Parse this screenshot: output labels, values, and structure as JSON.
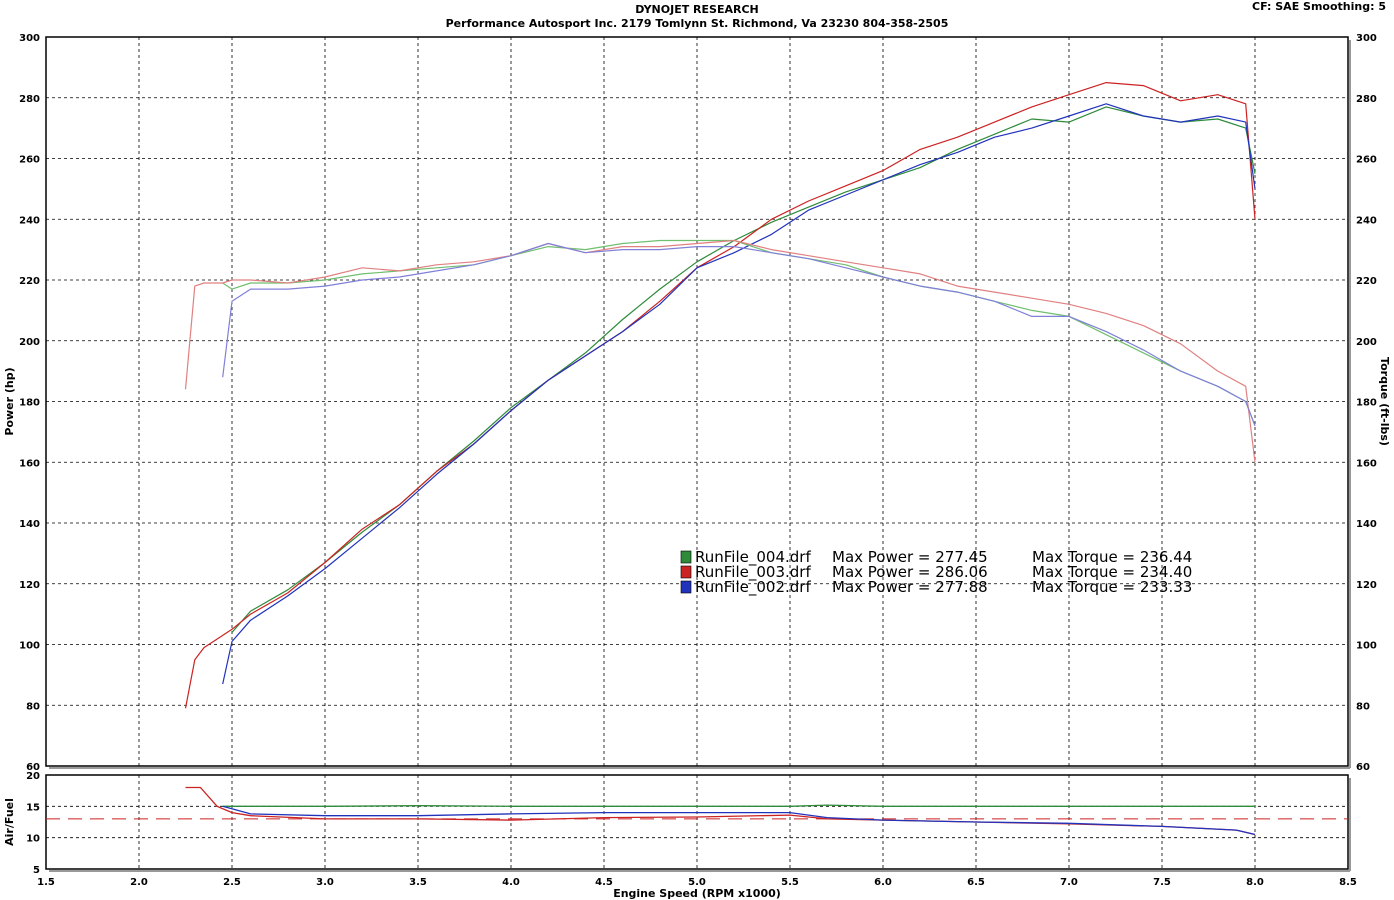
{
  "header": {
    "title": "DYNOJET RESEARCH",
    "subtitle": "Performance Autosport Inc. 2179 Tomlynn St. Richmond, Va 23230 804-358-2505",
    "meta": "CF: SAE  Smoothing: 5"
  },
  "colors": {
    "background": "#ffffff",
    "grid": "#000000",
    "green": "#2e8b3a",
    "red": "#cc2222",
    "blue": "#2233bb",
    "green_light": "#6fbf6f",
    "red_light": "#e08080",
    "blue_light": "#8080d8"
  },
  "chart_data": [
    {
      "type": "line",
      "xlabel": "Engine Speed (RPM x1000)",
      "ylabel": "Power (hp)",
      "y2label": "Torque (ft-lbs)",
      "xlim": [
        1.5,
        8.5
      ],
      "ylim": [
        60,
        300
      ],
      "y2lim": [
        60,
        300
      ],
      "xticks": [
        "1.5",
        "2.0",
        "2.5",
        "3.0",
        "3.5",
        "4.0",
        "4.5",
        "5.0",
        "5.5",
        "6.0",
        "6.5",
        "7.0",
        "7.5",
        "8.0",
        "8.5"
      ],
      "yticks": [
        "60",
        "80",
        "100",
        "120",
        "140",
        "160",
        "180",
        "200",
        "220",
        "240",
        "260",
        "280",
        "300"
      ],
      "grid": true,
      "legend": [
        {
          "color": "green",
          "run": "RunFile_004.drf",
          "power": "Max Power = 277.45",
          "torque": "Max Torque = 236.44"
        },
        {
          "color": "red",
          "run": "RunFile_003.drf",
          "power": "Max Power = 286.06",
          "torque": "Max Torque = 234.40"
        },
        {
          "color": "blue",
          "run": "RunFile_002.drf",
          "power": "Max Power = 277.88",
          "torque": "Max Torque = 233.33"
        }
      ],
      "series": [
        {
          "name": "RunFile_004.drf",
          "kind": "power",
          "color": "green",
          "x": [
            2.25,
            2.3,
            2.35,
            2.4,
            2.45,
            2.5,
            2.6,
            2.8,
            3.0,
            3.2,
            3.4,
            3.6,
            3.8,
            4.0,
            4.2,
            4.4,
            4.6,
            4.8,
            5.0,
            5.2,
            5.4,
            5.6,
            5.8,
            6.0,
            6.2,
            6.4,
            6.6,
            6.8,
            7.0,
            7.2,
            7.4,
            7.6,
            7.8,
            7.95,
            8.0
          ],
          "y": [
            null,
            null,
            null,
            null,
            null,
            104,
            111,
            118,
            127,
            137,
            146,
            157,
            167,
            178,
            187,
            196,
            207,
            217,
            226,
            233,
            239,
            244,
            249,
            253,
            257,
            263,
            268,
            273,
            272,
            277,
            274,
            272,
            273,
            270,
            255
          ]
        },
        {
          "name": "RunFile_003.drf",
          "kind": "power",
          "color": "red",
          "x": [
            2.25,
            2.3,
            2.35,
            2.4,
            2.45,
            2.5,
            2.6,
            2.8,
            3.0,
            3.2,
            3.4,
            3.6,
            3.8,
            4.0,
            4.2,
            4.4,
            4.6,
            4.8,
            5.0,
            5.2,
            5.4,
            5.6,
            5.8,
            6.0,
            6.2,
            6.4,
            6.6,
            6.8,
            7.0,
            7.2,
            7.4,
            7.6,
            7.8,
            7.95,
            8.0
          ],
          "y": [
            79,
            95,
            99,
            101,
            103,
            105,
            110,
            117,
            127,
            138,
            146,
            157,
            166,
            177,
            187,
            195,
            203,
            213,
            224,
            231,
            240,
            246,
            251,
            256,
            263,
            267,
            272,
            277,
            281,
            285,
            284,
            279,
            281,
            278,
            240
          ]
        },
        {
          "name": "RunFile_002.drf",
          "kind": "power",
          "color": "blue",
          "x": [
            2.25,
            2.3,
            2.35,
            2.4,
            2.45,
            2.5,
            2.6,
            2.8,
            3.0,
            3.2,
            3.4,
            3.6,
            3.8,
            4.0,
            4.2,
            4.4,
            4.6,
            4.8,
            5.0,
            5.2,
            5.4,
            5.6,
            5.8,
            6.0,
            6.2,
            6.4,
            6.6,
            6.8,
            7.0,
            7.2,
            7.4,
            7.6,
            7.8,
            7.95,
            8.0
          ],
          "y": [
            null,
            null,
            null,
            null,
            87,
            101,
            108,
            116,
            125,
            135,
            145,
            156,
            166,
            177,
            187,
            195,
            203,
            212,
            224,
            229,
            235,
            243,
            248,
            253,
            258,
            262,
            267,
            270,
            274,
            278,
            274,
            272,
            274,
            272,
            250
          ]
        },
        {
          "name": "RunFile_004.drf",
          "kind": "torque",
          "color": "green_light",
          "x": [
            2.25,
            2.3,
            2.35,
            2.4,
            2.45,
            2.5,
            2.6,
            2.8,
            3.0,
            3.2,
            3.4,
            3.6,
            3.8,
            4.0,
            4.2,
            4.4,
            4.6,
            4.8,
            5.0,
            5.2,
            5.4,
            5.6,
            5.8,
            6.0,
            6.2,
            6.4,
            6.6,
            6.8,
            7.0,
            7.2,
            7.4,
            7.6,
            7.8,
            7.95,
            8.0
          ],
          "y": [
            null,
            null,
            null,
            null,
            219,
            217,
            219,
            219,
            220,
            222,
            223,
            224,
            225,
            228,
            231,
            230,
            232,
            233,
            233,
            233,
            229,
            227,
            225,
            221,
            218,
            216,
            213,
            210,
            208,
            202,
            196,
            190,
            185,
            180,
            172
          ]
        },
        {
          "name": "RunFile_003.drf",
          "kind": "torque",
          "color": "red_light",
          "x": [
            2.25,
            2.3,
            2.35,
            2.4,
            2.45,
            2.5,
            2.6,
            2.8,
            3.0,
            3.2,
            3.4,
            3.6,
            3.8,
            4.0,
            4.2,
            4.4,
            4.6,
            4.8,
            5.0,
            5.2,
            5.4,
            5.6,
            5.8,
            6.0,
            6.2,
            6.4,
            6.6,
            6.8,
            7.0,
            7.2,
            7.4,
            7.6,
            7.8,
            7.95,
            8.0
          ],
          "y": [
            184,
            218,
            219,
            219,
            219,
            220,
            220,
            219,
            221,
            224,
            223,
            225,
            226,
            228,
            232,
            229,
            231,
            231,
            232,
            233,
            230,
            228,
            226,
            224,
            222,
            218,
            216,
            214,
            212,
            209,
            205,
            199,
            190,
            185,
            160
          ]
        },
        {
          "name": "RunFile_002.drf",
          "kind": "torque",
          "color": "blue_light",
          "x": [
            2.25,
            2.3,
            2.35,
            2.4,
            2.45,
            2.5,
            2.6,
            2.8,
            3.0,
            3.2,
            3.4,
            3.6,
            3.8,
            4.0,
            4.2,
            4.4,
            4.6,
            4.8,
            5.0,
            5.2,
            5.4,
            5.6,
            5.8,
            6.0,
            6.2,
            6.4,
            6.6,
            6.8,
            7.0,
            7.2,
            7.4,
            7.6,
            7.8,
            7.95,
            8.0
          ],
          "y": [
            null,
            null,
            null,
            null,
            188,
            213,
            217,
            217,
            218,
            220,
            221,
            223,
            225,
            228,
            232,
            229,
            230,
            230,
            231,
            231,
            229,
            227,
            224,
            221,
            218,
            216,
            213,
            208,
            208,
            203,
            197,
            190,
            185,
            180,
            172
          ]
        }
      ]
    },
    {
      "type": "line",
      "ylabel": "Air/Fuel",
      "xlim": [
        1.5,
        8.5
      ],
      "ylim": [
        5,
        20
      ],
      "yticks": [
        "5",
        "10",
        "15",
        "20"
      ],
      "reference": 13,
      "grid": true,
      "series": [
        {
          "name": "RunFile_004.drf",
          "color": "green",
          "x": [
            2.45,
            2.6,
            3.0,
            3.5,
            4.0,
            4.5,
            5.0,
            5.5,
            5.7,
            6.0,
            6.5,
            7.0,
            7.5,
            8.0
          ],
          "y": [
            15,
            15,
            15,
            15.1,
            15,
            15,
            15,
            15,
            15.2,
            15,
            15,
            15,
            15,
            15
          ]
        },
        {
          "name": "RunFile_003.drf",
          "color": "red",
          "x": [
            2.25,
            2.33,
            2.42,
            2.5,
            2.6,
            3.0,
            3.5,
            4.0,
            4.5,
            5.0,
            5.5,
            5.7,
            6.0,
            6.5,
            7.0,
            7.5,
            7.9,
            8.0
          ],
          "y": [
            18,
            18,
            15,
            14,
            13.5,
            13,
            13,
            12.8,
            13.2,
            13.3,
            13.6,
            13,
            12.8,
            12.5,
            12.2,
            11.8,
            11.2,
            10.5
          ]
        },
        {
          "name": "RunFile_002.drf",
          "color": "blue",
          "x": [
            2.45,
            2.6,
            3.0,
            3.5,
            4.0,
            4.5,
            5.0,
            5.5,
            5.7,
            6.0,
            6.5,
            7.0,
            7.5,
            7.9,
            8.0
          ],
          "y": [
            15,
            13.8,
            13.5,
            13.5,
            13.8,
            14,
            14,
            14,
            13.2,
            12.8,
            12.5,
            12.3,
            11.8,
            11.2,
            10.5
          ]
        }
      ]
    }
  ]
}
